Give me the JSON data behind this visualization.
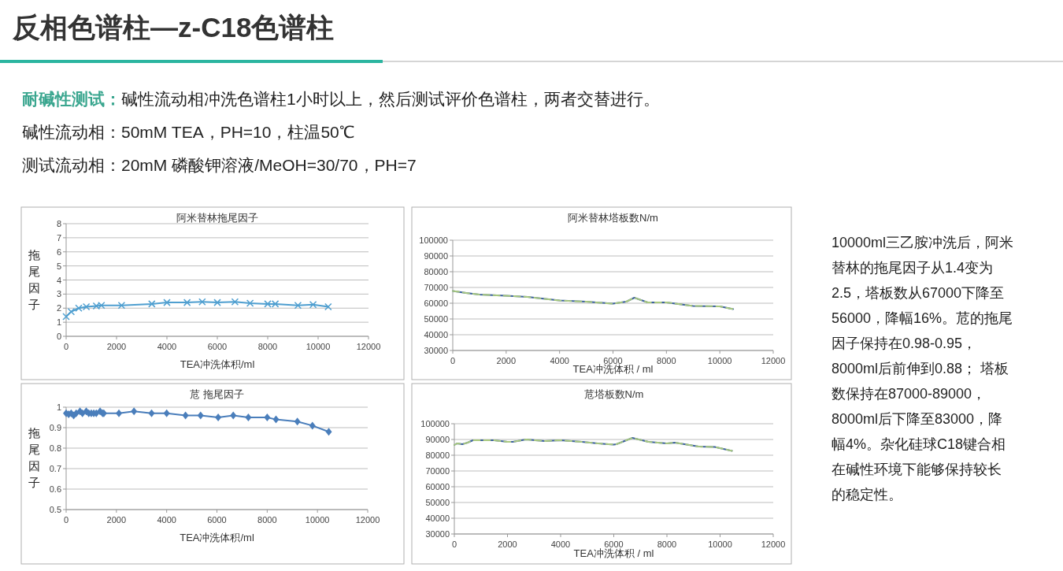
{
  "chart_data": [
    {
      "type": "other",
      "title": "反相色谱柱—z-C18色谱柱",
      "annotations": [
        "**耐碱性测试：**碱性流动相冲洗色谱柱1小时以上，然后测试评价色谱柱，两者交替进行。",
        "碱性流动相：50mM TEA，PH=10，柱温50℃",
        "测试流动相：20mM 磷酸钾溶液/MeOH=30/70，PH=7",
        "10000ml三乙胺冲洗后，阿米替林的拖尾因子从1.4变为2.5，塔板数从67000下降至56000，降幅16%。苊的拖尾因子保持在0.98-0.95，8000ml后前伸到0.88； 塔板数保持在87000-89000，8000ml后下降至83000，降幅4%。杂化硅球C18键合相在碱性环境下能够保持较长的稳定性。"
      ]
    },
    {
      "type": "line",
      "title": "阿米替林拖尾因子",
      "xlabel": "TEA冲洗体积/ml",
      "ylabel": "拖尾因子",
      "marker": "cross",
      "grid": "y",
      "x": [
        0,
        200,
        500,
        800,
        1200,
        1400,
        2200,
        3400,
        4000,
        4800,
        5400,
        6000,
        6700,
        7300,
        8000,
        8300,
        9200,
        9800,
        10400
      ],
      "series": [
        {
          "color": "#4f9fd0",
          "values": [
            1.4,
            1.75,
            2.0,
            2.1,
            2.15,
            2.2,
            2.2,
            2.3,
            2.4,
            2.4,
            2.45,
            2.4,
            2.45,
            2.35,
            2.3,
            2.3,
            2.2,
            2.25,
            2.1
          ]
        }
      ],
      "xlim": [
        0,
        12000
      ],
      "ylim": [
        0,
        8
      ],
      "xticks": [
        0,
        2000,
        4000,
        6000,
        8000,
        10000,
        12000
      ],
      "yticks": [
        0,
        1,
        2,
        3,
        4,
        5,
        6,
        7,
        8
      ]
    },
    {
      "type": "line",
      "title": "阿米替林塔板数N/m",
      "xlabel": "TEA冲洗体积 / ml",
      "grid": "y",
      "x": [
        0,
        500,
        1000,
        2000,
        2800,
        4000,
        5000,
        6000,
        6500,
        6800,
        7300,
        8000,
        9000,
        10000,
        10500
      ],
      "series": [
        {
          "color": "#3b5f9e",
          "values": [
            67800,
            66500,
            65500,
            64700,
            64000,
            61700,
            61000,
            59700,
            61000,
            63500,
            60500,
            60500,
            58300,
            58000,
            56300
          ]
        },
        {
          "color": "#a9c97f",
          "line_style": "dashed",
          "values": [
            67800,
            66500,
            65500,
            64700,
            64000,
            61700,
            61000,
            59700,
            61000,
            63500,
            60500,
            60500,
            58300,
            58000,
            56300
          ]
        }
      ],
      "xlim": [
        0,
        12000
      ],
      "ylim": [
        30000,
        100000
      ],
      "xticks": [
        0,
        2000,
        4000,
        6000,
        8000,
        10000,
        12000
      ],
      "yticks": [
        30000,
        40000,
        50000,
        60000,
        70000,
        80000,
        90000,
        100000
      ]
    },
    {
      "type": "line",
      "title": "苊 拖尾因子",
      "xlabel": "TEA冲洗体积/ml",
      "ylabel": "拖尾因子",
      "marker": "diamond",
      "grid": "y",
      "x": [
        0,
        100,
        200,
        300,
        400,
        550,
        650,
        800,
        900,
        1000,
        1100,
        1200,
        1350,
        1450,
        1500,
        2100,
        2700,
        3400,
        4000,
        4750,
        5350,
        6050,
        6650,
        7250,
        8000,
        8350,
        9200,
        9800,
        10450
      ],
      "series": [
        {
          "color": "#4a7ebb",
          "values": [
            0.97,
            0.965,
            0.97,
            0.96,
            0.97,
            0.98,
            0.97,
            0.98,
            0.97,
            0.97,
            0.97,
            0.97,
            0.98,
            0.97,
            0.97,
            0.97,
            0.98,
            0.97,
            0.97,
            0.96,
            0.96,
            0.95,
            0.96,
            0.95,
            0.95,
            0.94,
            0.93,
            0.91,
            0.88
          ]
        }
      ],
      "xlim": [
        0,
        12000
      ],
      "ylim": [
        0.5,
        1
      ],
      "xticks": [
        0,
        2000,
        4000,
        6000,
        8000,
        10000,
        12000
      ],
      "yticks": [
        0.5,
        0.6,
        0.7,
        0.8,
        0.9,
        1
      ]
    },
    {
      "type": "line",
      "title": "苊塔板数N/m",
      "xlabel": "TEA冲洗体积 / ml",
      "grid": "y",
      "x": [
        0,
        100,
        300,
        500,
        700,
        1000,
        1500,
        2000,
        2200,
        2700,
        3400,
        4000,
        4800,
        5400,
        6000,
        6100,
        6700,
        7300,
        8000,
        8300,
        9200,
        9800,
        10450
      ],
      "series": [
        {
          "color": "#3b5f9e",
          "values": [
            86500,
            87500,
            87000,
            88000,
            89500,
            89500,
            89500,
            88500,
            88500,
            90000,
            89000,
            89500,
            88500,
            87500,
            86800,
            87000,
            91000,
            88500,
            87500,
            88000,
            85500,
            85200,
            82800
          ]
        },
        {
          "color": "#a9c97f",
          "line_style": "dashed",
          "values": [
            86500,
            87500,
            87000,
            88000,
            89500,
            89500,
            89500,
            88500,
            88500,
            90000,
            89000,
            89500,
            88500,
            87500,
            86800,
            87000,
            91000,
            88500,
            87500,
            88000,
            85500,
            85200,
            82800
          ]
        }
      ],
      "xlim": [
        0,
        12000
      ],
      "ylim": [
        30000,
        100000
      ],
      "xticks": [
        0,
        2000,
        4000,
        6000,
        8000,
        10000,
        12000
      ],
      "yticks": [
        30000,
        40000,
        50000,
        60000,
        70000,
        80000,
        90000,
        100000
      ]
    }
  ]
}
